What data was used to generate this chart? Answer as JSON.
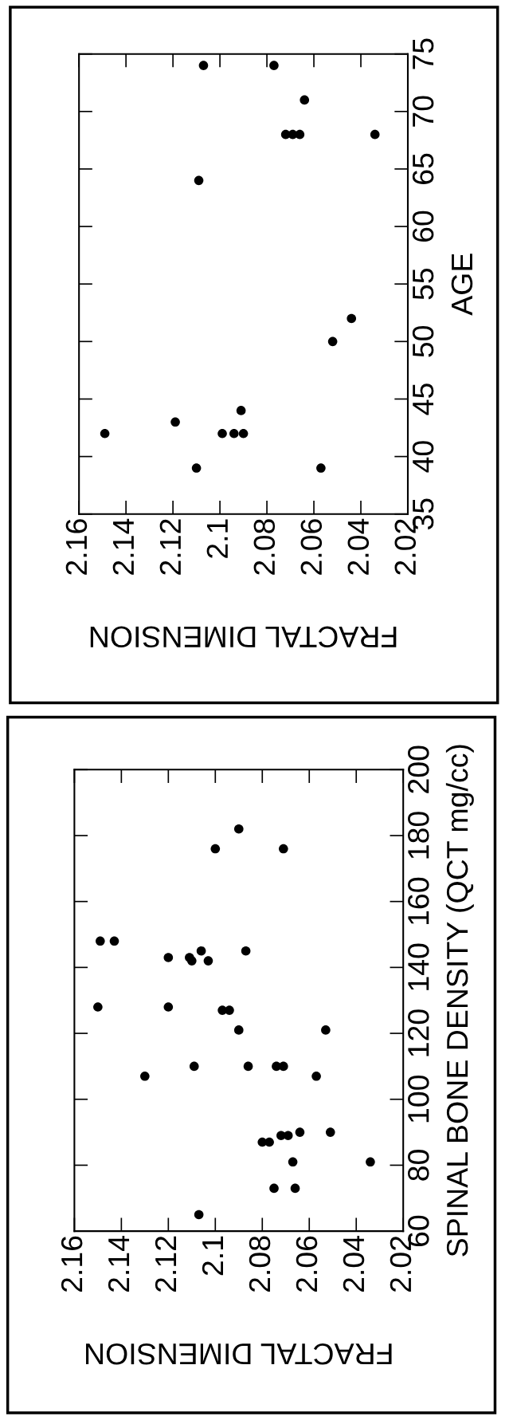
{
  "chart_data": [
    {
      "type": "scatter",
      "xlabel": "FRACTAL DIMENSION",
      "ylabel": "AGE",
      "marker": "circle",
      "grid": false,
      "series": [
        {
          "color": "#000000",
          "x": [
            2.107,
            2.077,
            2.064,
            2.072,
            2.069,
            2.066,
            2.034,
            2.109,
            2.044,
            2.052,
            2.149,
            2.119,
            2.11,
            2.099,
            2.094,
            2.09,
            2.091,
            2.057
          ],
          "values": [
            74,
            74,
            71,
            68,
            68,
            68,
            68,
            64,
            52,
            50,
            42,
            43,
            39,
            42,
            42,
            42,
            44,
            39
          ]
        }
      ],
      "xlim": [
        2.16,
        2.02
      ],
      "xticks": [
        2.16,
        2.14,
        2.12,
        2.1,
        2.08,
        2.06,
        2.04,
        2.02
      ],
      "ylim": [
        35,
        75
      ],
      "yticks": [
        35,
        40,
        45,
        50,
        55,
        60,
        65,
        70,
        75
      ]
    },
    {
      "type": "scatter",
      "xlabel": "FRACTAL DIMENSION",
      "ylabel": "SPINAL BONE DENSITY (QCT mg/cc)",
      "marker": "circle",
      "grid": false,
      "series": [
        {
          "color": "#000000",
          "x": [
            2.09,
            2.1,
            2.071,
            2.149,
            2.143,
            2.106,
            2.087,
            2.12,
            2.111,
            2.11,
            2.103,
            2.15,
            2.12,
            2.097,
            2.094,
            2.09,
            2.053,
            2.109,
            2.086,
            2.074,
            2.071,
            2.13,
            2.057,
            2.064,
            2.051,
            2.072,
            2.069,
            2.08,
            2.077,
            2.067,
            2.034,
            2.075,
            2.066,
            2.107
          ],
          "values": [
            182,
            176,
            176,
            148,
            148,
            145,
            145,
            143,
            143,
            142,
            142,
            128,
            128,
            127,
            127,
            121,
            121,
            110,
            110,
            110,
            110,
            107,
            107,
            90,
            90,
            89,
            89,
            87,
            87,
            81,
            81,
            73,
            73,
            65
          ]
        }
      ],
      "xlim": [
        2.16,
        2.02
      ],
      "xticks": [
        2.16,
        2.14,
        2.12,
        2.1,
        2.08,
        2.06,
        2.04,
        2.02
      ],
      "ylim": [
        60,
        200
      ],
      "yticks": [
        60,
        80,
        100,
        120,
        140,
        160,
        180,
        200
      ]
    }
  ]
}
